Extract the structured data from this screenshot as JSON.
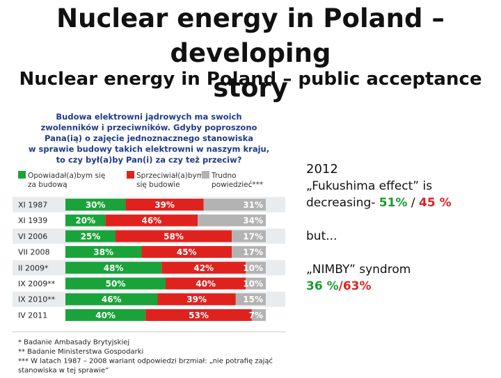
{
  "slide": {
    "title_line1": "Nuclear energy in Poland – developing",
    "title_line2": "story",
    "subtitle": "Nuclear energy in Poland – public acceptance"
  },
  "side_text": {
    "year": "2012",
    "fukushima": "„Fukushima effect” is",
    "decreasing_prefix": "decreasing- ",
    "support_2012": "51%",
    "separator": " / ",
    "oppose_2012": "45 %",
    "but": "but...",
    "nimby": "„NIMBY” syndrom",
    "nimby_support": "36 %",
    "nimby_slash": "/",
    "nimby_oppose": "63%"
  },
  "chart_data": {
    "type": "bar",
    "orientation": "horizontal-stacked",
    "title_lines": [
      "Budowa elektrowni jądrowych ma swoich",
      "zwolenników i przeciwników. Gdyby poproszono",
      "Pana(ią) o zajęcie jednoznacznego stanowiska",
      "w sprawie budowy takich elektrowni w naszym kraju,",
      "to czy był(a)by Pan(i) za czy też przeciw?"
    ],
    "legend": [
      {
        "lines": [
          "Opowiadał(a)bym się",
          "za budową"
        ],
        "color": "#1aa33a"
      },
      {
        "lines": [
          "Sprzeciwiał(a)bym",
          "się budowie"
        ],
        "color": "#e0221e"
      },
      {
        "lines": [
          "Trudno",
          "powiedzieć***"
        ],
        "color": "#b3b3b3"
      }
    ],
    "categories": [
      "XI 1987",
      "XI 1939",
      "VI 2006",
      "VII 2008",
      "II 2009*",
      "IX 2009**",
      "IX 2010**",
      "IV 2011"
    ],
    "series": [
      {
        "name": "Opowiadał(a)bym się za budową",
        "color": "#1aa33a",
        "values": [
          30,
          20,
          25,
          38,
          48,
          50,
          46,
          40
        ]
      },
      {
        "name": "Sprzeciwiał(a)bym się budowie",
        "color": "#e0221e",
        "values": [
          39,
          46,
          58,
          45,
          42,
          40,
          39,
          53
        ]
      },
      {
        "name": "Trudno powiedzieć***",
        "color": "#b3b3b3",
        "values": [
          31,
          34,
          17,
          17,
          10,
          10,
          15,
          7
        ]
      }
    ],
    "value_suffix": "%",
    "xlim": [
      0,
      100
    ],
    "footnotes": [
      "* Badanie Ambasady Brytyjskiej",
      "** Badanie Ministerstwa Gospodarki",
      "*** W latach 1987 – 2008 wariant odpowiedzi brzmiał: „nie potrafię zająć",
      "stanowiska w tej sprawie”"
    ],
    "colors": {
      "title": "#1f3b8a",
      "band": "#e9ecef",
      "label_text": "#ffffff"
    }
  }
}
